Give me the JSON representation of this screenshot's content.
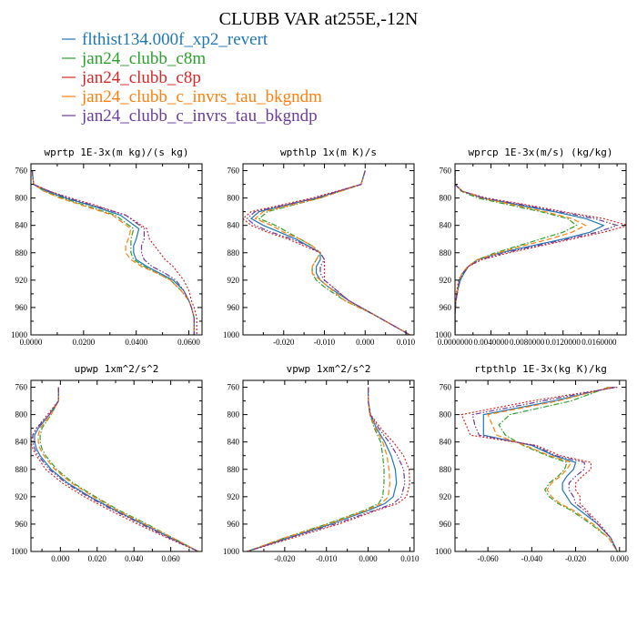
{
  "title": "CLUBB VAR at255E,-12N",
  "series_meta": [
    {
      "name": "flthist134.000f_xp2_revert",
      "color": "#1f77b4",
      "dash": ""
    },
    {
      "name": "jan24_clubb_c8m",
      "color": "#2ca02c",
      "dash": "6,2,1.5,2"
    },
    {
      "name": "jan24_clubb_c8p",
      "color": "#d62728",
      "dash": "2,2"
    },
    {
      "name": "jan24_clubb_c_invrs_tau_bkgndm",
      "color": "#ff7f0e",
      "dash": "6,3"
    },
    {
      "name": "jan24_clubb_c_invrs_tau_bkgndp",
      "color": "#6a3d9a",
      "dash": "6,2,1.5,2,1.5,2"
    }
  ],
  "chart_data": [
    {
      "type": "line",
      "title": "wprtp  1E-3x(m kg)/(s kg)",
      "xlim": [
        0,
        0.065
      ],
      "ylim": [
        1000,
        750
      ],
      "xticks": [
        0,
        0.02,
        0.04,
        0.06
      ],
      "xtick_labels": [
        "0.0000",
        "0.0200",
        "0.0400",
        "0.0600"
      ],
      "yticks": [
        760,
        800,
        840,
        880,
        920,
        960,
        1000
      ],
      "y": [
        760,
        780,
        790,
        800,
        810,
        825,
        845,
        860,
        870,
        880,
        890,
        900,
        910,
        920,
        935,
        950,
        960,
        975,
        990,
        1000
      ],
      "series": [
        {
          "name": "flthist134.000f_xp2_revert",
          "x": [
            0.0005,
            0.001,
            0.006,
            0.013,
            0.022,
            0.034,
            0.041,
            0.04,
            0.039,
            0.039,
            0.04,
            0.044,
            0.049,
            0.054,
            0.058,
            0.06,
            0.061,
            0.062,
            0.062,
            0.062
          ]
        },
        {
          "name": "jan24_clubb_c8m",
          "x": [
            0.0005,
            0.001,
            0.005,
            0.012,
            0.02,
            0.032,
            0.039,
            0.038,
            0.038,
            0.038,
            0.039,
            0.043,
            0.048,
            0.053,
            0.057,
            0.06,
            0.061,
            0.062,
            0.062,
            0.062
          ]
        },
        {
          "name": "jan24_clubb_c8p",
          "x": [
            0.0005,
            0.001,
            0.007,
            0.015,
            0.024,
            0.036,
            0.044,
            0.045,
            0.047,
            0.049,
            0.051,
            0.054,
            0.056,
            0.058,
            0.06,
            0.061,
            0.062,
            0.063,
            0.063,
            0.063
          ]
        },
        {
          "name": "jan24_clubb_c_invrs_tau_bkgndm",
          "x": [
            0.0005,
            0.001,
            0.005,
            0.011,
            0.019,
            0.031,
            0.038,
            0.037,
            0.036,
            0.036,
            0.038,
            0.042,
            0.048,
            0.053,
            0.057,
            0.06,
            0.061,
            0.062,
            0.062,
            0.062
          ]
        },
        {
          "name": "jan24_clubb_c_invrs_tau_bkgndp",
          "x": [
            0.0005,
            0.001,
            0.007,
            0.014,
            0.023,
            0.036,
            0.043,
            0.043,
            0.042,
            0.042,
            0.043,
            0.046,
            0.051,
            0.055,
            0.058,
            0.06,
            0.061,
            0.062,
            0.062,
            0.062
          ]
        }
      ]
    },
    {
      "type": "line",
      "title": "wpthlp  1x(m K)/s",
      "xlim": [
        -0.03,
        0.012
      ],
      "ylim": [
        1000,
        750
      ],
      "xticks": [
        -0.02,
        -0.01,
        0,
        0.01
      ],
      "xtick_labels": [
        "-0.020",
        "-0.010",
        "0.000",
        "0.010"
      ],
      "yticks": [
        760,
        800,
        840,
        880,
        920,
        960,
        1000
      ],
      "y": [
        760,
        780,
        800,
        820,
        830,
        840,
        850,
        860,
        870,
        880,
        890,
        900,
        910,
        920,
        930,
        950,
        970,
        990,
        1000
      ],
      "series": [
        {
          "name": "flthist134.000f_xp2_revert",
          "x": [
            0.0,
            -0.001,
            -0.012,
            -0.026,
            -0.028,
            -0.025,
            -0.021,
            -0.017,
            -0.014,
            -0.011,
            -0.011,
            -0.012,
            -0.012,
            -0.011,
            -0.009,
            -0.004,
            0.002,
            0.008,
            0.011
          ]
        },
        {
          "name": "jan24_clubb_c8m",
          "x": [
            0.0,
            -0.001,
            -0.011,
            -0.024,
            -0.026,
            -0.022,
            -0.019,
            -0.016,
            -0.013,
            -0.011,
            -0.012,
            -0.013,
            -0.013,
            -0.012,
            -0.01,
            -0.005,
            0.002,
            0.008,
            0.011
          ]
        },
        {
          "name": "jan24_clubb_c8p",
          "x": [
            0.0,
            -0.001,
            -0.013,
            -0.028,
            -0.03,
            -0.028,
            -0.024,
            -0.019,
            -0.015,
            -0.011,
            -0.01,
            -0.01,
            -0.01,
            -0.01,
            -0.008,
            -0.004,
            0.002,
            0.008,
            0.011
          ]
        },
        {
          "name": "jan24_clubb_c_invrs_tau_bkgndm",
          "x": [
            0.0,
            -0.001,
            -0.011,
            -0.025,
            -0.027,
            -0.023,
            -0.02,
            -0.016,
            -0.013,
            -0.011,
            -0.012,
            -0.013,
            -0.013,
            -0.011,
            -0.009,
            -0.005,
            0.002,
            0.008,
            0.011
          ]
        },
        {
          "name": "jan24_clubb_c_invrs_tau_bkgndp",
          "x": [
            0.0,
            -0.001,
            -0.012,
            -0.027,
            -0.029,
            -0.027,
            -0.023,
            -0.018,
            -0.014,
            -0.011,
            -0.01,
            -0.011,
            -0.011,
            -0.01,
            -0.008,
            -0.004,
            0.002,
            0.008,
            0.011
          ]
        }
      ]
    },
    {
      "type": "line",
      "title": "wprcp  1E-3x(m/s) (kg/kg)",
      "xlim": [
        0,
        0.019
      ],
      "ylim": [
        1000,
        750
      ],
      "xticks": [
        0,
        0.004,
        0.008,
        0.012,
        0.016
      ],
      "xtick_labels": [
        "0.0000000",
        "0.0040000",
        "0.0080000",
        "0.0120000",
        "0.0160000"
      ],
      "yticks": [
        760,
        800,
        840,
        880,
        920,
        960,
        1000
      ],
      "y": [
        760,
        780,
        790,
        800,
        810,
        820,
        830,
        840,
        850,
        860,
        870,
        880,
        890,
        900,
        910,
        920,
        935,
        950,
        970,
        1000
      ],
      "series": [
        {
          "name": "flthist134.000f_xp2_revert",
          "x": [
            0.0,
            0.0,
            0.0008,
            0.003,
            0.007,
            0.011,
            0.0145,
            0.0165,
            0.015,
            0.012,
            0.0085,
            0.005,
            0.0025,
            0.0015,
            0.001,
            0.0006,
            0.0003,
            0.0001,
            0.0,
            0.0
          ]
        },
        {
          "name": "jan24_clubb_c8m",
          "x": [
            0.0,
            0.0,
            0.0007,
            0.0025,
            0.006,
            0.0095,
            0.0125,
            0.0135,
            0.012,
            0.0095,
            0.007,
            0.0045,
            0.0025,
            0.0015,
            0.0008,
            0.0005,
            0.0003,
            0.0001,
            0.0,
            0.0
          ]
        },
        {
          "name": "jan24_clubb_c8p",
          "x": [
            0.0,
            0.0,
            0.0008,
            0.0035,
            0.008,
            0.012,
            0.0165,
            0.0192,
            0.0165,
            0.013,
            0.0095,
            0.006,
            0.003,
            0.0015,
            0.0008,
            0.0004,
            0.0002,
            0.0001,
            0.0,
            0.0
          ]
        },
        {
          "name": "jan24_clubb_c_invrs_tau_bkgndm",
          "x": [
            0.0,
            0.0,
            0.0008,
            0.003,
            0.0065,
            0.01,
            0.013,
            0.0145,
            0.013,
            0.0105,
            0.0075,
            0.0048,
            0.0025,
            0.0014,
            0.0008,
            0.0005,
            0.0003,
            0.0001,
            0.0,
            0.0
          ]
        },
        {
          "name": "jan24_clubb_c_invrs_tau_bkgndp",
          "x": [
            0.0,
            0.0,
            0.0008,
            0.0032,
            0.0075,
            0.0115,
            0.0155,
            0.018,
            0.0158,
            0.0125,
            0.009,
            0.0055,
            0.0028,
            0.0015,
            0.0009,
            0.0005,
            0.0003,
            0.0001,
            0.0,
            0.0
          ]
        }
      ]
    },
    {
      "type": "line",
      "title": "upwp  1xm^2/s^2",
      "xlim": [
        -0.016,
        0.077
      ],
      "ylim": [
        1000,
        750
      ],
      "xticks": [
        0,
        0.02,
        0.04,
        0.06
      ],
      "xtick_labels": [
        "0.000",
        "0.020",
        "0.040",
        "0.060"
      ],
      "yticks": [
        760,
        800,
        840,
        880,
        920,
        960,
        1000
      ],
      "y": [
        760,
        780,
        800,
        820,
        830,
        840,
        850,
        860,
        880,
        900,
        920,
        940,
        960,
        980,
        1000
      ],
      "series": [
        {
          "name": "flthist134.000f_xp2_revert",
          "x": [
            -0.001,
            -0.001,
            -0.006,
            -0.012,
            -0.014,
            -0.014,
            -0.013,
            -0.011,
            -0.005,
            0.004,
            0.016,
            0.03,
            0.045,
            0.06,
            0.075
          ]
        },
        {
          "name": "jan24_clubb_c8m",
          "x": [
            -0.001,
            -0.001,
            -0.005,
            -0.01,
            -0.011,
            -0.011,
            -0.01,
            -0.008,
            -0.002,
            0.007,
            0.019,
            0.032,
            0.047,
            0.061,
            0.075
          ]
        },
        {
          "name": "jan24_clubb_c8p",
          "x": [
            -0.001,
            -0.001,
            -0.007,
            -0.013,
            -0.015,
            -0.016,
            -0.015,
            -0.013,
            -0.008,
            0.001,
            0.013,
            0.027,
            0.042,
            0.058,
            0.075
          ]
        },
        {
          "name": "jan24_clubb_c_invrs_tau_bkgndm",
          "x": [
            -0.001,
            -0.001,
            -0.005,
            -0.011,
            -0.012,
            -0.012,
            -0.011,
            -0.009,
            -0.003,
            0.006,
            0.018,
            0.031,
            0.046,
            0.061,
            0.075
          ]
        },
        {
          "name": "jan24_clubb_c_invrs_tau_bkgndp",
          "x": [
            -0.001,
            -0.001,
            -0.006,
            -0.013,
            -0.015,
            -0.015,
            -0.014,
            -0.012,
            -0.006,
            0.003,
            0.015,
            0.029,
            0.044,
            0.059,
            0.075
          ]
        }
      ]
    },
    {
      "type": "line",
      "title": "vpwp  1xm^2/s^2",
      "xlim": [
        -0.03,
        0.011
      ],
      "ylim": [
        1000,
        750
      ],
      "xticks": [
        -0.02,
        -0.01,
        0,
        0.01
      ],
      "xtick_labels": [
        "-0.020",
        "-0.010",
        "0.000",
        "0.010"
      ],
      "yticks": [
        760,
        800,
        840,
        880,
        920,
        960,
        1000
      ],
      "y": [
        760,
        780,
        800,
        820,
        840,
        860,
        880,
        900,
        920,
        930,
        940,
        960,
        980,
        1000
      ],
      "series": [
        {
          "name": "flthist134.000f_xp2_revert",
          "x": [
            0.0,
            0.0,
            0.0005,
            0.002,
            0.004,
            0.0055,
            0.0065,
            0.0068,
            0.006,
            0.004,
            0.0,
            -0.009,
            -0.019,
            -0.029
          ]
        },
        {
          "name": "jan24_clubb_c8m",
          "x": [
            0.0,
            0.0,
            0.0004,
            0.0015,
            0.003,
            0.0035,
            0.0038,
            0.0038,
            0.0035,
            0.0025,
            -0.001,
            -0.01,
            -0.02,
            -0.029
          ]
        },
        {
          "name": "jan24_clubb_c8p",
          "x": [
            0.0,
            0.0,
            0.0006,
            0.003,
            0.006,
            0.0085,
            0.0098,
            0.01,
            0.0092,
            0.007,
            0.002,
            -0.007,
            -0.018,
            -0.029
          ]
        },
        {
          "name": "jan24_clubb_c_invrs_tau_bkgndm",
          "x": [
            0.0,
            0.0,
            0.0004,
            0.0018,
            0.0035,
            0.0045,
            0.005,
            0.0052,
            0.0048,
            0.0032,
            -0.0005,
            -0.0095,
            -0.02,
            -0.029
          ]
        },
        {
          "name": "jan24_clubb_c_invrs_tau_bkgndp",
          "x": [
            0.0,
            0.0,
            0.0005,
            0.0025,
            0.005,
            0.007,
            0.0085,
            0.0088,
            0.008,
            0.006,
            0.0015,
            -0.008,
            -0.019,
            -0.029
          ]
        }
      ]
    },
    {
      "type": "line",
      "title": "rtpthlp  1E-3x(kg K)/kg",
      "xlim": [
        -0.075,
        0.003
      ],
      "ylim": [
        1000,
        750
      ],
      "xticks": [
        -0.06,
        -0.04,
        -0.02,
        0
      ],
      "xtick_labels": [
        "-0.060",
        "-0.040",
        "-0.020",
        "0.000"
      ],
      "yticks": [
        760,
        800,
        840,
        880,
        920,
        960,
        1000
      ],
      "y": [
        760,
        780,
        800,
        815,
        830,
        845,
        860,
        870,
        880,
        890,
        900,
        910,
        920,
        930,
        940,
        960,
        980,
        1000
      ],
      "series": [
        {
          "name": "flthist134.000f_xp2_revert",
          "x": [
            -0.003,
            -0.03,
            -0.062,
            -0.062,
            -0.062,
            -0.04,
            -0.03,
            -0.02,
            -0.021,
            -0.024,
            -0.026,
            -0.026,
            -0.024,
            -0.022,
            -0.018,
            -0.01,
            -0.004,
            -0.001
          ]
        },
        {
          "name": "jan24_clubb_c8m",
          "x": [
            -0.005,
            -0.022,
            -0.05,
            -0.055,
            -0.052,
            -0.044,
            -0.033,
            -0.024,
            -0.025,
            -0.028,
            -0.032,
            -0.034,
            -0.032,
            -0.028,
            -0.022,
            -0.013,
            -0.005,
            -0.001
          ]
        },
        {
          "name": "jan24_clubb_c8p",
          "x": [
            -0.001,
            -0.04,
            -0.072,
            -0.07,
            -0.068,
            -0.038,
            -0.027,
            -0.013,
            -0.013,
            -0.017,
            -0.02,
            -0.02,
            -0.018,
            -0.018,
            -0.015,
            -0.009,
            -0.004,
            -0.001
          ]
        },
        {
          "name": "jan24_clubb_c_invrs_tau_bkgndm",
          "x": [
            -0.004,
            -0.028,
            -0.06,
            -0.058,
            -0.056,
            -0.043,
            -0.032,
            -0.022,
            -0.024,
            -0.027,
            -0.031,
            -0.033,
            -0.031,
            -0.027,
            -0.021,
            -0.012,
            -0.005,
            -0.001
          ]
        },
        {
          "name": "jan24_clubb_c_invrs_tau_bkgndp",
          "x": [
            -0.002,
            -0.035,
            -0.067,
            -0.066,
            -0.064,
            -0.039,
            -0.029,
            -0.016,
            -0.016,
            -0.02,
            -0.023,
            -0.023,
            -0.021,
            -0.02,
            -0.016,
            -0.01,
            -0.004,
            -0.001
          ]
        }
      ]
    }
  ]
}
